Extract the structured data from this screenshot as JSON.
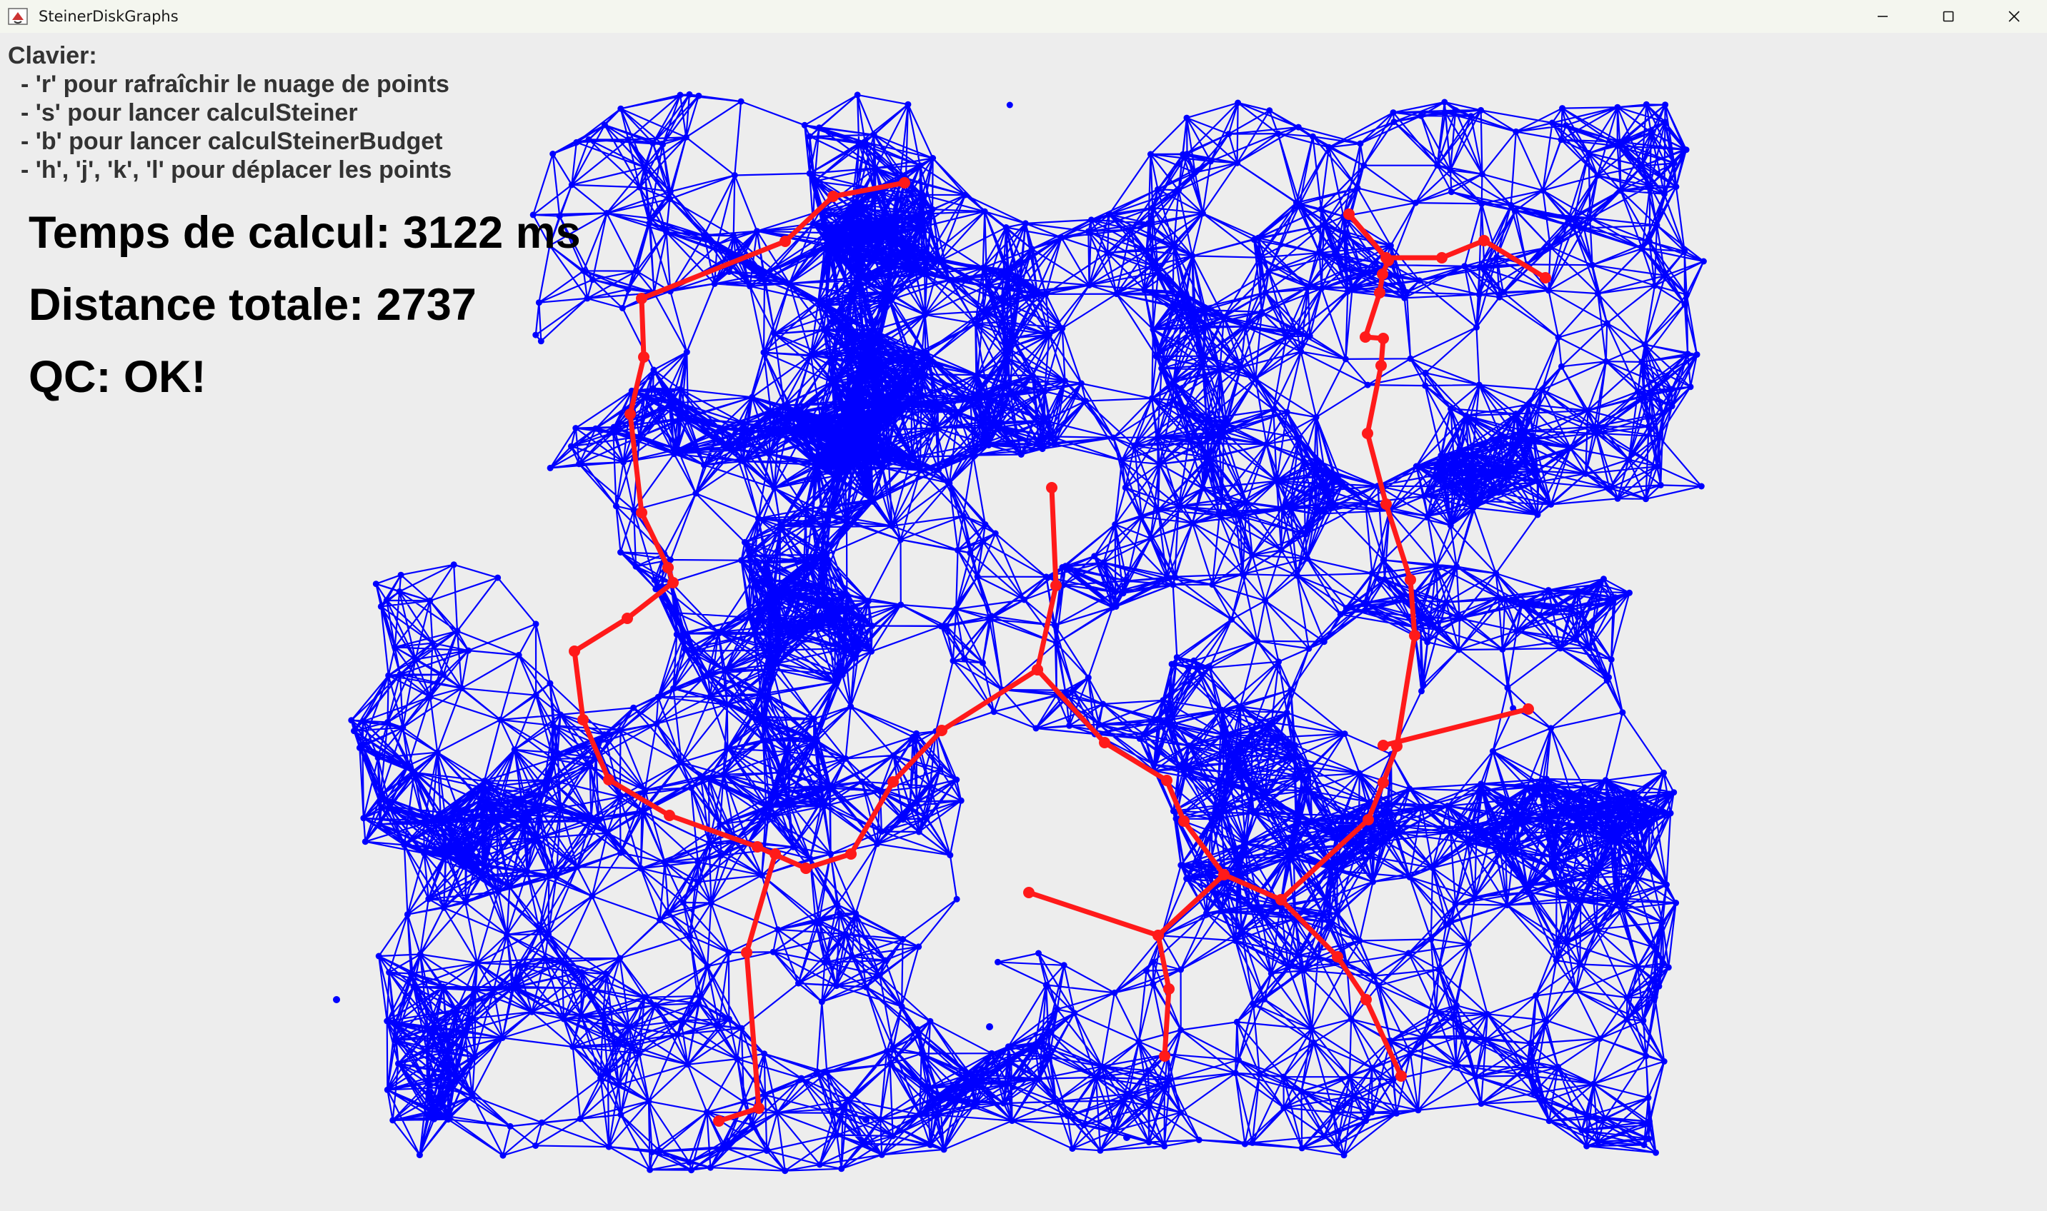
{
  "window": {
    "title": "SteinerDiskGraphs",
    "icon": "java-cup-icon",
    "controls": [
      "minimize-icon",
      "maximize-icon",
      "close-icon"
    ]
  },
  "help": {
    "heading": "Clavier:",
    "items": [
      "- 'r' pour rafraîchir le nuage de points",
      "- 's' pour lancer calculSteiner",
      "- 'b' pour lancer calculSteinerBudget",
      "- 'h', 'j', 'k', 'l' pour déplacer les points"
    ]
  },
  "stats": {
    "time": "Temps de calcul: 3122 ms",
    "distance": "Distance totale: 2737",
    "qc": "QC: OK!"
  },
  "colors": {
    "background": "#ededed",
    "graph_edges": "#0000ff",
    "steiner_tree": "#ff1a1a"
  }
}
